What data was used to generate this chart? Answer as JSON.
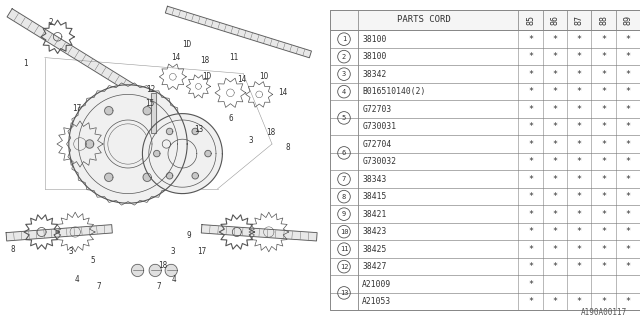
{
  "bg_color": "#ffffff",
  "rows": [
    {
      "code": "38100",
      "cols": [
        "*",
        "*",
        "*",
        "*",
        "*"
      ],
      "circle_num": "1",
      "group_rows": 1
    },
    {
      "code": "38100",
      "cols": [
        "*",
        "*",
        "*",
        "*",
        "*"
      ],
      "circle_num": "2",
      "group_rows": 1
    },
    {
      "code": "38342",
      "cols": [
        "*",
        "*",
        "*",
        "*",
        "*"
      ],
      "circle_num": "3",
      "group_rows": 1
    },
    {
      "code": "B016510140(2)",
      "cols": [
        "*",
        "*",
        "*",
        "*",
        "*"
      ],
      "circle_num": "4",
      "group_rows": 1
    },
    {
      "code": "G72703",
      "cols": [
        "*",
        "*",
        "*",
        "*",
        "*"
      ],
      "circle_num": "5",
      "group_rows": 2
    },
    {
      "code": "G730031",
      "cols": [
        "*",
        "*",
        "*",
        "*",
        "*"
      ],
      "circle_num": "",
      "group_rows": 0
    },
    {
      "code": "G72704",
      "cols": [
        "*",
        "*",
        "*",
        "*",
        "*"
      ],
      "circle_num": "6",
      "group_rows": 2
    },
    {
      "code": "G730032",
      "cols": [
        "*",
        "*",
        "*",
        "*",
        "*"
      ],
      "circle_num": "",
      "group_rows": 0
    },
    {
      "code": "38343",
      "cols": [
        "*",
        "*",
        "*",
        "*",
        "*"
      ],
      "circle_num": "7",
      "group_rows": 1
    },
    {
      "code": "38415",
      "cols": [
        "*",
        "*",
        "*",
        "*",
        "*"
      ],
      "circle_num": "8",
      "group_rows": 1
    },
    {
      "code": "38421",
      "cols": [
        "*",
        "*",
        "*",
        "*",
        "*"
      ],
      "circle_num": "9",
      "group_rows": 1
    },
    {
      "code": "38423",
      "cols": [
        "*",
        "*",
        "*",
        "*",
        "*"
      ],
      "circle_num": "10",
      "group_rows": 1
    },
    {
      "code": "38425",
      "cols": [
        "*",
        "*",
        "*",
        "*",
        "*"
      ],
      "circle_num": "11",
      "group_rows": 1
    },
    {
      "code": "38427",
      "cols": [
        "*",
        "*",
        "*",
        "*",
        "*"
      ],
      "circle_num": "12",
      "group_rows": 1
    },
    {
      "code": "A21009",
      "cols": [
        "*",
        "",
        "",
        "",
        ""
      ],
      "circle_num": "13",
      "group_rows": 2
    },
    {
      "code": "A21053",
      "cols": [
        "*",
        "*",
        "*",
        "*",
        "*"
      ],
      "circle_num": "",
      "group_rows": 0
    }
  ],
  "years": [
    "85",
    "86",
    "87",
    "88",
    "89"
  ],
  "watermark": "A190A00117",
  "line_color": "#888888",
  "text_color": "#333333"
}
